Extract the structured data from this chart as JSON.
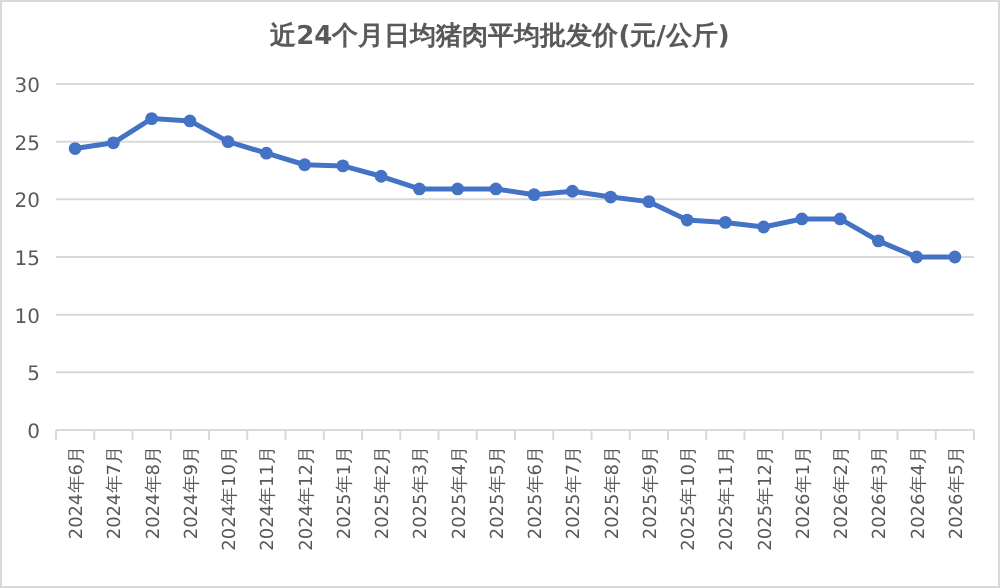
{
  "chart_data": {
    "type": "line",
    "title": "近24个月日均猪肉平均批发价(元/公斤)",
    "categories": [
      "2024年6月",
      "2024年7月",
      "2024年8月",
      "2024年9月",
      "2024年10月",
      "2024年11月",
      "2024年12月",
      "2025年1月",
      "2025年2月",
      "2025年3月",
      "2025年4月",
      "2025年5月",
      "2025年6月",
      "2025年7月",
      "2025年8月",
      "2025年9月",
      "2025年10月",
      "2025年11月",
      "2025年12月",
      "2026年1月",
      "2026年2月",
      "2026年3月",
      "2026年4月",
      "2026年5月"
    ],
    "series": [
      {
        "color": "#4472c4",
        "values": [
          24.4,
          24.9,
          27.0,
          26.8,
          25.0,
          24.0,
          23.0,
          22.9,
          22.0,
          20.9,
          20.9,
          20.9,
          20.4,
          20.7,
          20.2,
          19.8,
          18.2,
          18.0,
          17.6,
          18.3,
          18.3,
          16.4,
          15.0,
          15.0
        ]
      }
    ],
    "ylim": [
      0,
      30
    ],
    "yticks": [
      0,
      5,
      10,
      15,
      20,
      25,
      30
    ],
    "grid": "y",
    "marker": "circle",
    "line_style": "solid"
  }
}
